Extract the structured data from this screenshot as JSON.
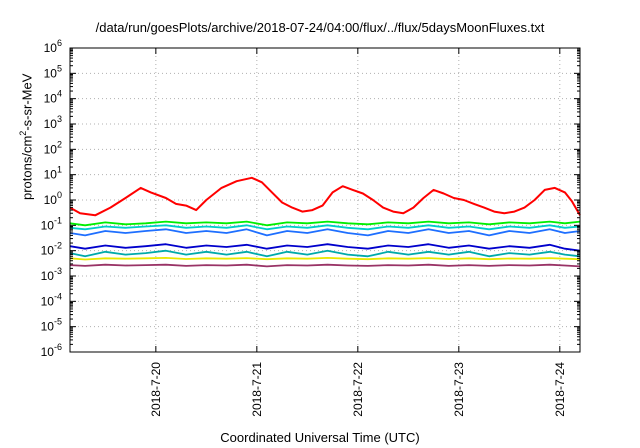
{
  "chart_data": {
    "type": "line",
    "title": "/data/run/goesPlots/archive/2018-07-24/04:00/flux/../flux/5daysMoonFluxes.txt",
    "xlabel": "Coordinated Universal Time (UTC)",
    "ylabel_pre": "protons/cm",
    "ylabel_sup": "2",
    "ylabel_post": "-s-sr-MeV",
    "yscale": "log",
    "ylim_exp": [
      -6,
      6
    ],
    "ytick_exps": [
      -6,
      -5,
      -4,
      -3,
      -2,
      -1,
      0,
      1,
      2,
      3,
      4,
      5,
      6
    ],
    "ytick_base": "10",
    "xlim_days": [
      19.15,
      24.2
    ],
    "xtick_labels": [
      "2018-7-20",
      "2018-7-21",
      "2018-7-22",
      "2018-7-23",
      "2018-7-24"
    ],
    "xtick_days": [
      20,
      21,
      22,
      23,
      24
    ],
    "grid": true,
    "series": [
      {
        "color": "#ff0000",
        "points": [
          [
            19.15,
            0.5
          ],
          [
            19.25,
            0.3
          ],
          [
            19.4,
            0.25
          ],
          [
            19.55,
            0.5
          ],
          [
            19.7,
            1.2
          ],
          [
            19.85,
            3.0
          ],
          [
            19.95,
            2.0
          ],
          [
            20.1,
            1.2
          ],
          [
            20.2,
            0.7
          ],
          [
            20.3,
            0.6
          ],
          [
            20.4,
            0.4
          ],
          [
            20.5,
            1.0
          ],
          [
            20.65,
            3.0
          ],
          [
            20.8,
            5.5
          ],
          [
            20.95,
            7.5
          ],
          [
            21.05,
            5.0
          ],
          [
            21.15,
            2.0
          ],
          [
            21.25,
            0.8
          ],
          [
            21.35,
            0.5
          ],
          [
            21.45,
            0.35
          ],
          [
            21.55,
            0.4
          ],
          [
            21.65,
            0.6
          ],
          [
            21.75,
            2.0
          ],
          [
            21.85,
            3.5
          ],
          [
            21.95,
            2.5
          ],
          [
            22.05,
            1.8
          ],
          [
            22.15,
            1.0
          ],
          [
            22.25,
            0.5
          ],
          [
            22.35,
            0.35
          ],
          [
            22.45,
            0.3
          ],
          [
            22.55,
            0.5
          ],
          [
            22.65,
            1.2
          ],
          [
            22.75,
            2.5
          ],
          [
            22.85,
            1.8
          ],
          [
            22.95,
            1.2
          ],
          [
            23.05,
            1.0
          ],
          [
            23.15,
            0.7
          ],
          [
            23.25,
            0.5
          ],
          [
            23.35,
            0.35
          ],
          [
            23.45,
            0.3
          ],
          [
            23.55,
            0.35
          ],
          [
            23.65,
            0.5
          ],
          [
            23.75,
            1.0
          ],
          [
            23.85,
            2.5
          ],
          [
            23.95,
            3.0
          ],
          [
            24.05,
            2.0
          ],
          [
            24.12,
            0.9
          ],
          [
            24.2,
            0.25
          ]
        ]
      },
      {
        "color": "#00ee00",
        "points": [
          [
            19.15,
            0.12
          ],
          [
            19.3,
            0.1
          ],
          [
            19.5,
            0.13
          ],
          [
            19.7,
            0.11
          ],
          [
            19.9,
            0.12
          ],
          [
            20.1,
            0.14
          ],
          [
            20.3,
            0.12
          ],
          [
            20.5,
            0.13
          ],
          [
            20.7,
            0.12
          ],
          [
            20.9,
            0.14
          ],
          [
            21.1,
            0.1
          ],
          [
            21.3,
            0.13
          ],
          [
            21.5,
            0.12
          ],
          [
            21.7,
            0.14
          ],
          [
            21.9,
            0.12
          ],
          [
            22.1,
            0.11
          ],
          [
            22.3,
            0.13
          ],
          [
            22.5,
            0.12
          ],
          [
            22.7,
            0.14
          ],
          [
            22.9,
            0.12
          ],
          [
            23.1,
            0.13
          ],
          [
            23.3,
            0.11
          ],
          [
            23.5,
            0.13
          ],
          [
            23.7,
            0.12
          ],
          [
            23.9,
            0.14
          ],
          [
            24.05,
            0.12
          ],
          [
            24.2,
            0.14
          ]
        ]
      },
      {
        "color": "#00cccc",
        "points": [
          [
            19.15,
            0.08
          ],
          [
            19.3,
            0.07
          ],
          [
            19.5,
            0.09
          ],
          [
            19.7,
            0.08
          ],
          [
            19.9,
            0.09
          ],
          [
            20.1,
            0.1
          ],
          [
            20.3,
            0.08
          ],
          [
            20.5,
            0.09
          ],
          [
            20.7,
            0.08
          ],
          [
            20.9,
            0.1
          ],
          [
            21.1,
            0.07
          ],
          [
            21.3,
            0.09
          ],
          [
            21.5,
            0.08
          ],
          [
            21.7,
            0.1
          ],
          [
            21.9,
            0.08
          ],
          [
            22.1,
            0.07
          ],
          [
            22.3,
            0.09
          ],
          [
            22.5,
            0.08
          ],
          [
            22.7,
            0.1
          ],
          [
            22.9,
            0.08
          ],
          [
            23.1,
            0.09
          ],
          [
            23.3,
            0.07
          ],
          [
            23.5,
            0.09
          ],
          [
            23.7,
            0.08
          ],
          [
            23.9,
            0.1
          ],
          [
            24.05,
            0.08
          ],
          [
            24.2,
            0.09
          ]
        ]
      },
      {
        "color": "#1e6fff",
        "points": [
          [
            19.15,
            0.05
          ],
          [
            19.3,
            0.04
          ],
          [
            19.5,
            0.06
          ],
          [
            19.7,
            0.05
          ],
          [
            19.9,
            0.06
          ],
          [
            20.1,
            0.07
          ],
          [
            20.3,
            0.05
          ],
          [
            20.5,
            0.06
          ],
          [
            20.7,
            0.05
          ],
          [
            20.9,
            0.07
          ],
          [
            21.1,
            0.04
          ],
          [
            21.3,
            0.06
          ],
          [
            21.5,
            0.05
          ],
          [
            21.7,
            0.07
          ],
          [
            21.9,
            0.05
          ],
          [
            22.1,
            0.04
          ],
          [
            22.3,
            0.06
          ],
          [
            22.5,
            0.05
          ],
          [
            22.7,
            0.07
          ],
          [
            22.9,
            0.05
          ],
          [
            23.1,
            0.06
          ],
          [
            23.3,
            0.04
          ],
          [
            23.5,
            0.06
          ],
          [
            23.7,
            0.05
          ],
          [
            23.9,
            0.07
          ],
          [
            24.05,
            0.05
          ],
          [
            24.2,
            0.06
          ]
        ]
      },
      {
        "color": "#0000cc",
        "points": [
          [
            19.15,
            0.015
          ],
          [
            19.3,
            0.012
          ],
          [
            19.5,
            0.016
          ],
          [
            19.7,
            0.013
          ],
          [
            19.9,
            0.015
          ],
          [
            20.1,
            0.018
          ],
          [
            20.3,
            0.013
          ],
          [
            20.5,
            0.016
          ],
          [
            20.7,
            0.014
          ],
          [
            20.9,
            0.017
          ],
          [
            21.1,
            0.012
          ],
          [
            21.3,
            0.016
          ],
          [
            21.5,
            0.014
          ],
          [
            21.7,
            0.018
          ],
          [
            21.9,
            0.014
          ],
          [
            22.1,
            0.012
          ],
          [
            22.3,
            0.016
          ],
          [
            22.5,
            0.014
          ],
          [
            22.7,
            0.018
          ],
          [
            22.9,
            0.013
          ],
          [
            23.1,
            0.016
          ],
          [
            23.3,
            0.012
          ],
          [
            23.5,
            0.015
          ],
          [
            23.7,
            0.013
          ],
          [
            23.9,
            0.017
          ],
          [
            24.05,
            0.012
          ],
          [
            24.2,
            0.01
          ]
        ]
      },
      {
        "color": "#00aaaa",
        "points": [
          [
            19.15,
            0.008
          ],
          [
            19.3,
            0.006
          ],
          [
            19.5,
            0.009
          ],
          [
            19.7,
            0.007
          ],
          [
            19.9,
            0.008
          ],
          [
            20.1,
            0.01
          ],
          [
            20.3,
            0.007
          ],
          [
            20.5,
            0.009
          ],
          [
            20.7,
            0.007
          ],
          [
            20.9,
            0.009
          ],
          [
            21.1,
            0.006
          ],
          [
            21.3,
            0.009
          ],
          [
            21.5,
            0.007
          ],
          [
            21.7,
            0.01
          ],
          [
            21.9,
            0.007
          ],
          [
            22.1,
            0.006
          ],
          [
            22.3,
            0.009
          ],
          [
            22.5,
            0.007
          ],
          [
            22.7,
            0.009
          ],
          [
            22.9,
            0.007
          ],
          [
            23.1,
            0.009
          ],
          [
            23.3,
            0.006
          ],
          [
            23.5,
            0.008
          ],
          [
            23.7,
            0.007
          ],
          [
            23.9,
            0.009
          ],
          [
            24.05,
            0.007
          ],
          [
            24.2,
            0.006
          ]
        ]
      },
      {
        "color": "#e8e800",
        "points": [
          [
            19.15,
            0.005
          ],
          [
            19.3,
            0.0045
          ],
          [
            19.5,
            0.005
          ],
          [
            19.7,
            0.0048
          ],
          [
            19.9,
            0.005
          ],
          [
            20.1,
            0.0052
          ],
          [
            20.3,
            0.0047
          ],
          [
            20.5,
            0.005
          ],
          [
            20.7,
            0.0048
          ],
          [
            20.9,
            0.0051
          ],
          [
            21.1,
            0.0046
          ],
          [
            21.3,
            0.005
          ],
          [
            21.5,
            0.0048
          ],
          [
            21.7,
            0.0052
          ],
          [
            21.9,
            0.0048
          ],
          [
            22.1,
            0.0046
          ],
          [
            22.3,
            0.005
          ],
          [
            22.5,
            0.0048
          ],
          [
            22.7,
            0.0051
          ],
          [
            22.9,
            0.0047
          ],
          [
            23.1,
            0.005
          ],
          [
            23.3,
            0.0046
          ],
          [
            23.5,
            0.0049
          ],
          [
            23.7,
            0.0048
          ],
          [
            23.9,
            0.0051
          ],
          [
            24.05,
            0.0048
          ],
          [
            24.2,
            0.0046
          ]
        ]
      },
      {
        "color": "#993366",
        "points": [
          [
            19.15,
            0.0027
          ],
          [
            19.3,
            0.0025
          ],
          [
            19.5,
            0.0028
          ],
          [
            19.7,
            0.0026
          ],
          [
            19.9,
            0.0027
          ],
          [
            20.1,
            0.0028
          ],
          [
            20.3,
            0.0025
          ],
          [
            20.5,
            0.0027
          ],
          [
            20.7,
            0.0026
          ],
          [
            20.9,
            0.0028
          ],
          [
            21.1,
            0.0024
          ],
          [
            21.3,
            0.0027
          ],
          [
            21.5,
            0.0026
          ],
          [
            21.7,
            0.0028
          ],
          [
            21.9,
            0.0026
          ],
          [
            22.1,
            0.0025
          ],
          [
            22.3,
            0.0027
          ],
          [
            22.5,
            0.0026
          ],
          [
            22.7,
            0.0028
          ],
          [
            22.9,
            0.0025
          ],
          [
            23.1,
            0.0027
          ],
          [
            23.3,
            0.0025
          ],
          [
            23.5,
            0.0027
          ],
          [
            23.7,
            0.0026
          ],
          [
            23.9,
            0.0028
          ],
          [
            24.05,
            0.0026
          ],
          [
            24.2,
            0.0024
          ]
        ]
      }
    ]
  }
}
